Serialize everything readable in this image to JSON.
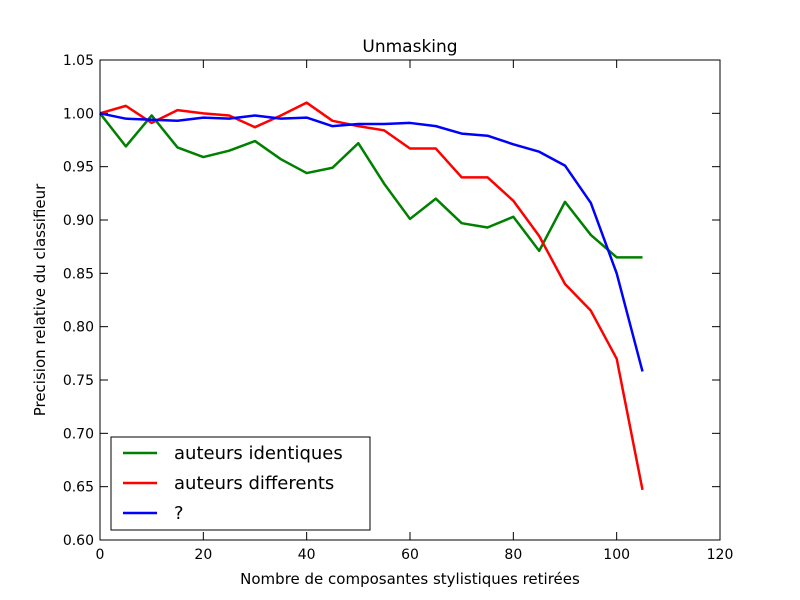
{
  "chart_data": {
    "type": "line",
    "title": "Unmasking",
    "xlabel": "Nombre de composantes stylistiques retirées",
    "ylabel": "Precision relative du classifieur",
    "xlim": [
      0,
      120
    ],
    "ylim": [
      0.6,
      1.05
    ],
    "xticks": [
      "0",
      "20",
      "40",
      "60",
      "80",
      "100",
      "120"
    ],
    "yticks": [
      "0.60",
      "0.65",
      "0.70",
      "0.75",
      "0.80",
      "0.85",
      "0.90",
      "0.95",
      "1.00",
      "1.05"
    ],
    "grid": false,
    "legend_position": "bottom-left",
    "x": [
      0,
      5,
      10,
      15,
      20,
      25,
      30,
      35,
      40,
      45,
      50,
      55,
      60,
      65,
      70,
      75,
      80,
      85,
      90,
      95,
      100,
      105
    ],
    "series": [
      {
        "name": "auteurs identiques",
        "color": "#008000",
        "values": [
          1.0,
          0.969,
          0.998,
          0.968,
          0.959,
          0.965,
          0.974,
          0.957,
          0.944,
          0.949,
          0.972,
          0.934,
          0.901,
          0.92,
          0.897,
          0.893,
          0.903,
          0.871,
          0.917,
          0.886,
          0.865,
          0.865
        ]
      },
      {
        "name": "auteurs differents",
        "color": "#ff0000",
        "values": [
          1.0,
          1.007,
          0.991,
          1.003,
          1.0,
          0.998,
          0.987,
          0.998,
          1.01,
          0.993,
          0.988,
          0.984,
          0.967,
          0.967,
          0.94,
          0.94,
          0.918,
          0.885,
          0.84,
          0.815,
          0.77,
          0.647
        ]
      },
      {
        "name": "?",
        "color": "#0000ff",
        "values": [
          1.0,
          0.995,
          0.994,
          0.993,
          0.996,
          0.995,
          0.998,
          0.995,
          0.996,
          0.988,
          0.99,
          0.99,
          0.991,
          0.988,
          0.981,
          0.979,
          0.971,
          0.964,
          0.951,
          0.916,
          0.85,
          0.758
        ]
      }
    ]
  }
}
